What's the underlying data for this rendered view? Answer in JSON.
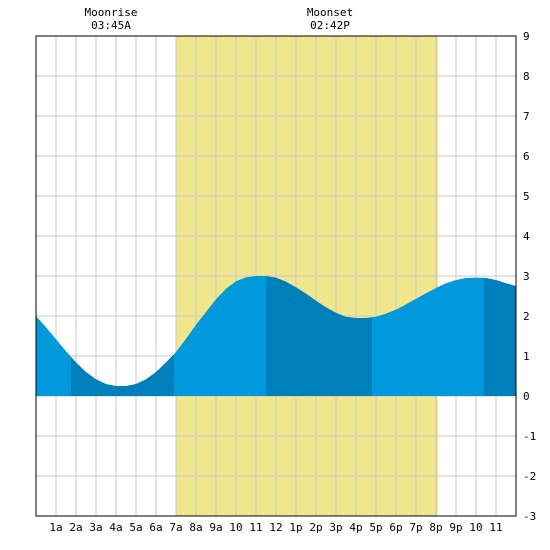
{
  "moon_events": [
    {
      "name": "Moonrise",
      "time": "03:45A",
      "hour": 3.75
    },
    {
      "name": "Moonset",
      "time": "02:42P",
      "hour": 14.7
    }
  ],
  "chart_data": {
    "type": "area",
    "title": "",
    "xlabel": "",
    "ylabel": "",
    "xlim": [
      0,
      24
    ],
    "ylim": [
      -3,
      9
    ],
    "grid": true,
    "x_tick_labels": [
      "1a",
      "2a",
      "3a",
      "4a",
      "5a",
      "6a",
      "7a",
      "8a",
      "9a",
      "10",
      "11",
      "12",
      "1p",
      "2p",
      "3p",
      "4p",
      "5p",
      "6p",
      "7p",
      "8p",
      "9p",
      "10",
      "11"
    ],
    "y_ticks": [
      -3,
      -2,
      -1,
      0,
      1,
      2,
      3,
      4,
      5,
      6,
      7,
      8,
      9
    ],
    "daylight": {
      "start": 7.0,
      "end": 20.1
    },
    "tide_extremes": [
      {
        "type": "low",
        "hour": 4.5,
        "height": 0.25
      },
      {
        "type": "high",
        "hour": 11.5,
        "height": 3.0
      },
      {
        "type": "low",
        "hour": 17.0,
        "height": 1.95
      },
      {
        "type": "high",
        "hour": 22.6,
        "height": 2.95
      }
    ],
    "series": [
      {
        "x": [
          0,
          0.5,
          1,
          1.5,
          2,
          2.5,
          3,
          3.5,
          4,
          4.5,
          5,
          5.5,
          6,
          6.5,
          7,
          7.5,
          8,
          8.5,
          9,
          9.5,
          10,
          10.5,
          11,
          11.5,
          12,
          12.5,
          13,
          13.5,
          14,
          14.5,
          15,
          15.5,
          16,
          16.5,
          17,
          17.5,
          18,
          18.5,
          19,
          19.5,
          20,
          20.5,
          21,
          21.5,
          22,
          22.5,
          23,
          23.5,
          24
        ],
        "values": [
          2.0,
          1.72,
          1.42,
          1.12,
          0.84,
          0.6,
          0.42,
          0.3,
          0.25,
          0.25,
          0.3,
          0.42,
          0.6,
          0.84,
          1.1,
          1.43,
          1.78,
          2.1,
          2.42,
          2.68,
          2.87,
          2.97,
          3.0,
          3.0,
          2.96,
          2.86,
          2.72,
          2.56,
          2.38,
          2.22,
          2.08,
          1.98,
          1.95,
          1.95,
          1.98,
          2.06,
          2.16,
          2.29,
          2.43,
          2.57,
          2.7,
          2.82,
          2.9,
          2.95,
          2.96,
          2.95,
          2.9,
          2.82,
          2.75
        ]
      }
    ],
    "band_colors": [
      "#0099dd",
      "#0080bb"
    ],
    "band_boundaries": [
      0,
      1.75,
      6.9,
      11.5,
      16.8,
      22.4,
      24
    ],
    "colors": {
      "daylight": "#f0e68c",
      "grid": "#c8c8c8",
      "frame": "#000000"
    }
  }
}
